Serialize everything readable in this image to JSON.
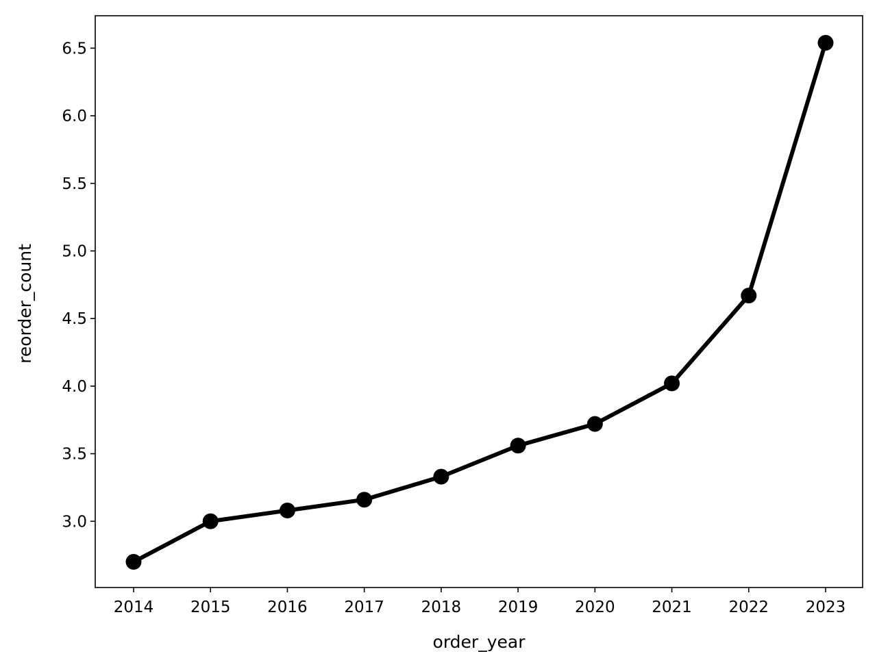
{
  "chart_data": {
    "type": "line",
    "title": "",
    "xlabel": "order_year",
    "ylabel": "reorder_count",
    "categories": [
      "2014",
      "2015",
      "2016",
      "2017",
      "2018",
      "2019",
      "2020",
      "2021",
      "2022",
      "2023"
    ],
    "series": [
      {
        "values": [
          2.7,
          3.0,
          3.08,
          3.16,
          3.33,
          3.56,
          3.72,
          4.02,
          4.67,
          6.54
        ],
        "color": "#000000",
        "marker": "circle"
      }
    ],
    "yticks": [
      "3.0",
      "3.5",
      "4.0",
      "4.5",
      "5.0",
      "5.5",
      "6.0",
      "6.5"
    ],
    "ylim": [
      2.51,
      6.74
    ],
    "grid": false,
    "legend": "none"
  }
}
